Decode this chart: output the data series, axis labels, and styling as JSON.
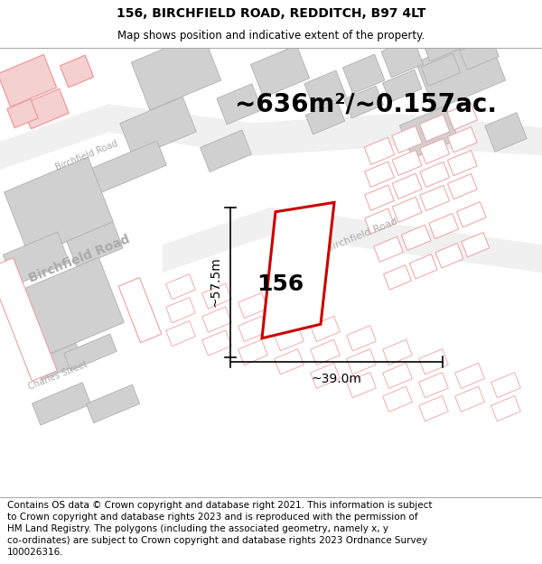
{
  "title_line1": "156, BIRCHFIELD ROAD, REDDITCH, B97 4LT",
  "title_line2": "Map shows position and indicative extent of the property.",
  "area_text": "~636m²/~0.157ac.",
  "dim_vertical": "~57.5m",
  "dim_horizontal": "~39.0m",
  "label_156": "156",
  "footer_lines": [
    "Contains OS data © Crown copyright and database right 2021. This information is subject",
    "to Crown copyright and database rights 2023 and is reproduced with the permission of",
    "HM Land Registry. The polygons (including the associated geometry, namely x, y",
    "co-ordinates) are subject to Crown copyright and database rights 2023 Ordnance Survey",
    "100026316."
  ],
  "pink": "#f0a0a0",
  "pink_fill": "#fce8e8",
  "red_outline": "#cc0000",
  "gray_fill": "#d0d0d0",
  "gray_outline": "#b0b0b0",
  "white": "#ffffff",
  "road_text_color": "#aaaaaa",
  "title_fontsize": 10,
  "subtitle_fontsize": 8.5,
  "area_fontsize": 20,
  "dim_fontsize": 10,
  "label_fontsize": 18,
  "footer_fontsize": 7.5,
  "road_label_small": 7,
  "road_label_large": 10
}
